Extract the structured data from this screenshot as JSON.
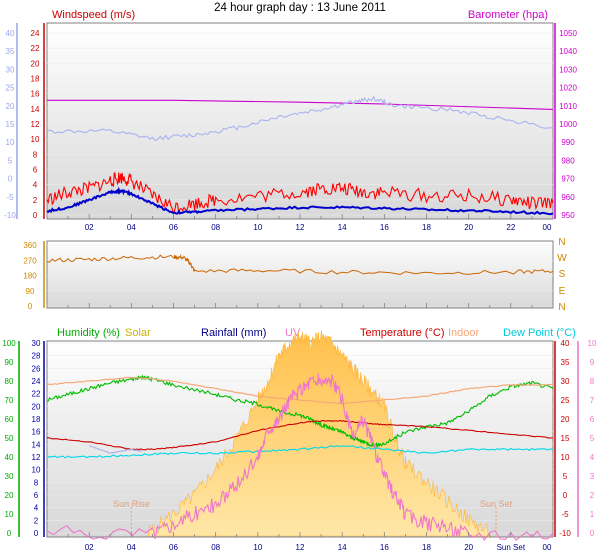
{
  "title": "24 hour graph day : 13 June 2011",
  "x_ticks": [
    "02",
    "04",
    "06",
    "08",
    "10",
    "12",
    "14",
    "16",
    "18",
    "20",
    "22",
    "00"
  ],
  "chart_data": [
    {
      "type": "line",
      "panel": "wind_baro",
      "left_axis_labels": {
        "outer": {
          "ticks": [
            40,
            35,
            30,
            25,
            20,
            15,
            10,
            5,
            0,
            -5,
            -10
          ],
          "color": "#9aa6ee"
        },
        "inner": {
          "ticks": [
            24,
            22,
            20,
            18,
            16,
            14,
            12,
            10,
            8,
            6,
            4,
            2,
            0
          ],
          "color": "#cc0000"
        }
      },
      "right_axis_label": {
        "ticks": [
          1050,
          1040,
          1030,
          1020,
          1010,
          1000,
          990,
          980,
          970,
          960,
          950
        ],
        "color": "#cc00cc"
      },
      "legend": [
        {
          "label": "Windspeed (m/s)",
          "color": "#cc0000"
        },
        {
          "label": "Barometer (hpa)",
          "color": "#cc00cc"
        }
      ],
      "series": [
        {
          "key": "baro",
          "color": "#cc00cc",
          "axis": "hpa",
          "x": [
            0,
            6,
            12,
            16,
            24
          ],
          "values": [
            1013,
            1013,
            1012,
            1011,
            1008
          ]
        },
        {
          "key": "temp_outer",
          "color": "#a9b2f0",
          "axis": "outer",
          "x": [
            0,
            3,
            5,
            7,
            9,
            11,
            13,
            14.5,
            15.5,
            16.5,
            19,
            21,
            24
          ],
          "values": [
            13,
            13,
            11,
            12,
            14,
            17,
            19,
            21,
            22,
            20,
            19,
            17,
            14
          ]
        },
        {
          "key": "gust",
          "color": "#ff0000",
          "axis": "inner",
          "x": [
            0,
            1,
            2,
            3,
            3.5,
            4,
            5,
            6,
            7,
            8,
            10,
            12,
            13,
            14,
            15,
            16,
            18,
            20,
            22,
            23,
            24
          ],
          "values": [
            2,
            3,
            3.5,
            4.5,
            5,
            4.5,
            2.5,
            1,
            1.5,
            2,
            2.5,
            3,
            3.5,
            3.5,
            3,
            3,
            2.5,
            2.5,
            2,
            1.5,
            1.5
          ]
        },
        {
          "key": "wind_avg",
          "color": "#0000cc",
          "axis": "inner",
          "x": [
            0,
            1,
            2,
            3,
            3.5,
            4,
            5,
            6,
            7,
            8,
            10,
            12,
            14,
            16,
            18,
            20,
            22,
            24
          ],
          "values": [
            0.5,
            1,
            2,
            3,
            3.2,
            2.8,
            1.5,
            0.3,
            0.4,
            0.6,
            0.8,
            1,
            1,
            0.9,
            0.7,
            0.6,
            0.4,
            0.2
          ]
        }
      ]
    },
    {
      "type": "line",
      "panel": "wind_dir",
      "left_axis_labels": {
        "ticks": [
          360,
          270,
          180,
          90,
          0
        ],
        "color": "#cc8800"
      },
      "right_axis_labels": {
        "ticks": [
          "N",
          "W",
          "S",
          "E",
          "N"
        ],
        "color": "#cc8800"
      },
      "series": [
        {
          "key": "direction",
          "color": "#cc6600",
          "x": [
            0,
            2,
            4,
            6,
            6.5,
            6.8,
            7,
            10,
            14,
            18,
            22,
            24
          ],
          "values": [
            268,
            275,
            285,
            290,
            285,
            250,
            205,
            210,
            200,
            195,
            200,
            205
          ]
        }
      ]
    },
    {
      "type": "line",
      "panel": "temp_hum",
      "left_axis_labels": {
        "outer": {
          "ticks": [
            100,
            90,
            80,
            70,
            60,
            50,
            40,
            30,
            20,
            10,
            0
          ],
          "color": "#00aa00"
        },
        "inner": {
          "ticks": [
            30,
            28,
            26,
            24,
            22,
            20,
            18,
            16,
            14,
            12,
            10,
            8,
            6,
            4,
            2,
            0
          ],
          "color": "#0000aa"
        }
      },
      "right_axis_labels": {
        "inner": {
          "ticks": [
            40,
            35,
            30,
            25,
            20,
            15,
            10,
            5,
            0,
            -5,
            -10
          ],
          "color": "#cc0000"
        },
        "outer": {
          "ticks": [
            10,
            9,
            8,
            7,
            6,
            5,
            4,
            3,
            2,
            1,
            0
          ],
          "color": "#ee77cc"
        }
      },
      "legend": [
        {
          "label": "Humidity (%)",
          "color": "#00aa00"
        },
        {
          "label": "Solar",
          "color": "#c8b400"
        },
        {
          "label": "Rainfall (mm)",
          "color": "#000088"
        },
        {
          "label": "UV",
          "color": "#ee77cc"
        },
        {
          "label": "Temperature (°C)",
          "color": "#cc0000"
        },
        {
          "label": "Indoor",
          "color": "#f4a878"
        },
        {
          "label": "Dew Point (°C)",
          "color": "#00c8dd"
        }
      ],
      "annotations": {
        "sunrise": "Sun Rise",
        "sunset": "Sun Set",
        "sunset_tick": "Sun Set"
      },
      "series": [
        {
          "key": "humidity",
          "color": "#00bb00",
          "axis": "pct",
          "x": [
            0,
            1,
            2,
            3,
            4,
            4.5,
            5,
            6,
            8,
            9,
            10,
            11,
            12,
            12.5,
            13,
            13.5,
            14,
            14.5,
            15,
            15.5,
            16,
            17,
            18,
            19,
            20,
            21,
            22,
            23,
            24
          ],
          "values": [
            70,
            73,
            76,
            79,
            81,
            82,
            81,
            78,
            73,
            70,
            68,
            64,
            62,
            60,
            57,
            55,
            53,
            50,
            48,
            46,
            47,
            53,
            56,
            58,
            64,
            72,
            77,
            79,
            76
          ]
        },
        {
          "key": "indoor",
          "color": "#f4a878",
          "axis": "temp",
          "x": [
            0,
            2,
            4,
            6,
            8,
            10,
            12,
            14,
            16,
            18,
            20,
            22,
            24
          ],
          "values": [
            29,
            30,
            31,
            30,
            28,
            26,
            25,
            24,
            25,
            26,
            28,
            29,
            29
          ]
        },
        {
          "key": "temperature",
          "color": "#cc0000",
          "axis": "temp",
          "x": [
            0,
            2,
            4,
            5,
            6,
            8,
            10,
            12,
            13,
            14,
            15,
            16,
            18,
            20,
            22,
            24
          ],
          "values": [
            15,
            14,
            12,
            12,
            12.5,
            14,
            17,
            19,
            19.5,
            19.5,
            19,
            18.5,
            18,
            17,
            16,
            15
          ]
        },
        {
          "key": "dew_point",
          "color": "#00d8e8",
          "axis": "temp",
          "x": [
            0,
            2,
            4,
            6,
            8,
            10,
            12,
            14,
            16,
            18,
            20,
            22,
            24
          ],
          "values": [
            10,
            10,
            10.5,
            11,
            11,
            11.5,
            12,
            13,
            12,
            11,
            12,
            12,
            12
          ]
        },
        {
          "key": "rain_gray",
          "color": "#a9b2f0",
          "axis": "temp",
          "x": [
            2,
            3,
            4,
            4.5
          ],
          "values": [
            13,
            11,
            12,
            11.5
          ]
        },
        {
          "key": "uv",
          "color": "#ee77cc",
          "axis": "uv",
          "x": [
            0,
            5,
            6,
            7,
            8,
            9,
            10,
            10.5,
            11,
            11.5,
            12,
            12.5,
            13,
            13.5,
            14,
            14.5,
            15,
            15.5,
            16,
            16.5,
            17,
            18,
            19,
            20,
            24
          ],
          "values": [
            0,
            0,
            0.5,
            1,
            1.5,
            2.5,
            4,
            5.5,
            6,
            7,
            7.5,
            8,
            8,
            8,
            7,
            5,
            6,
            4.5,
            3,
            2,
            1,
            0.5,
            0.3,
            0,
            0
          ]
        },
        {
          "key": "solar",
          "color": "#ffc85a",
          "axis": "solar",
          "x": [
            4.8,
            6,
            7,
            8,
            9,
            10,
            10.5,
            11,
            11.5,
            12,
            12.5,
            13,
            13.5,
            14,
            14.5,
            15,
            15.5,
            16,
            16.5,
            17,
            18,
            19,
            20,
            21
          ],
          "values": [
            0,
            3,
            6,
            10,
            15,
            21,
            24,
            28,
            30,
            31,
            30,
            31,
            30,
            28,
            26,
            24,
            22,
            20,
            15,
            11,
            8,
            5,
            2,
            0
          ]
        }
      ]
    }
  ]
}
